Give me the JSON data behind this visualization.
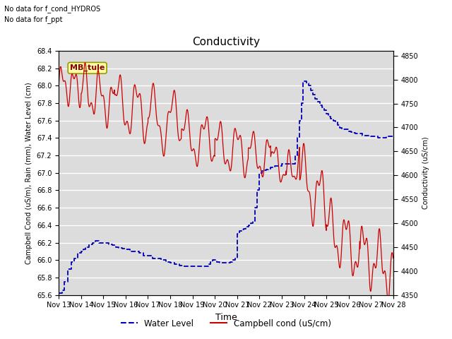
{
  "title": "Conductivity",
  "xlabel": "Time",
  "ylabel_left": "Campbell Cond (uS/m), Rain (mm), Water Level (cm)",
  "ylabel_right": "Conductivity (uS/cm)",
  "annotations": [
    "No data for f_cond_HYDROS",
    "No data for f_ppt"
  ],
  "legend_label_box": "MB_tule",
  "legend_entries": [
    {
      "label": "Water Level",
      "color": "#0000bb",
      "linestyle": "--"
    },
    {
      "label": "Campbell cond (uS/cm)",
      "color": "#cc0000",
      "linestyle": "-"
    }
  ],
  "ylim_left": [
    65.6,
    68.4
  ],
  "ylim_right": [
    4350,
    4860
  ],
  "yticks_left_step": 0.2,
  "yticks_right_step": 50,
  "background_color": "#dcdcdc",
  "grid_color": "#ffffff",
  "fig_bg": "#ffffff",
  "title_fontsize": 11,
  "label_fontsize": 7,
  "tick_fontsize": 7,
  "xlabel_fontsize": 9
}
